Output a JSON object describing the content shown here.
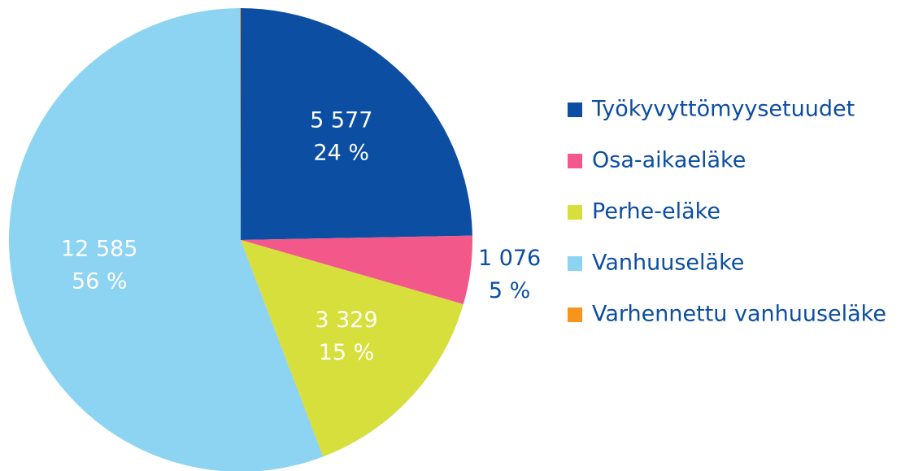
{
  "chart_data": {
    "type": "pie",
    "categories": [
      "Työkyvyttömyysetuudet",
      "Osa-aikaeläke",
      "Perhe-eläke",
      "Vanhuuseläke",
      "Varhennettu vanhuuseläke"
    ],
    "values": [
      5577,
      1076,
      3329,
      12585,
      10
    ],
    "value_labels": [
      "5 577",
      "1 076",
      "3 329",
      "12 585",
      null
    ],
    "percent_labels": [
      "24 %",
      "5 %",
      "15 %",
      "56 %",
      null
    ],
    "colors": [
      "#0b4ea2",
      "#f2598a",
      "#d7df3c",
      "#8dd3f2",
      "#f7941d"
    ],
    "legend": "right"
  }
}
